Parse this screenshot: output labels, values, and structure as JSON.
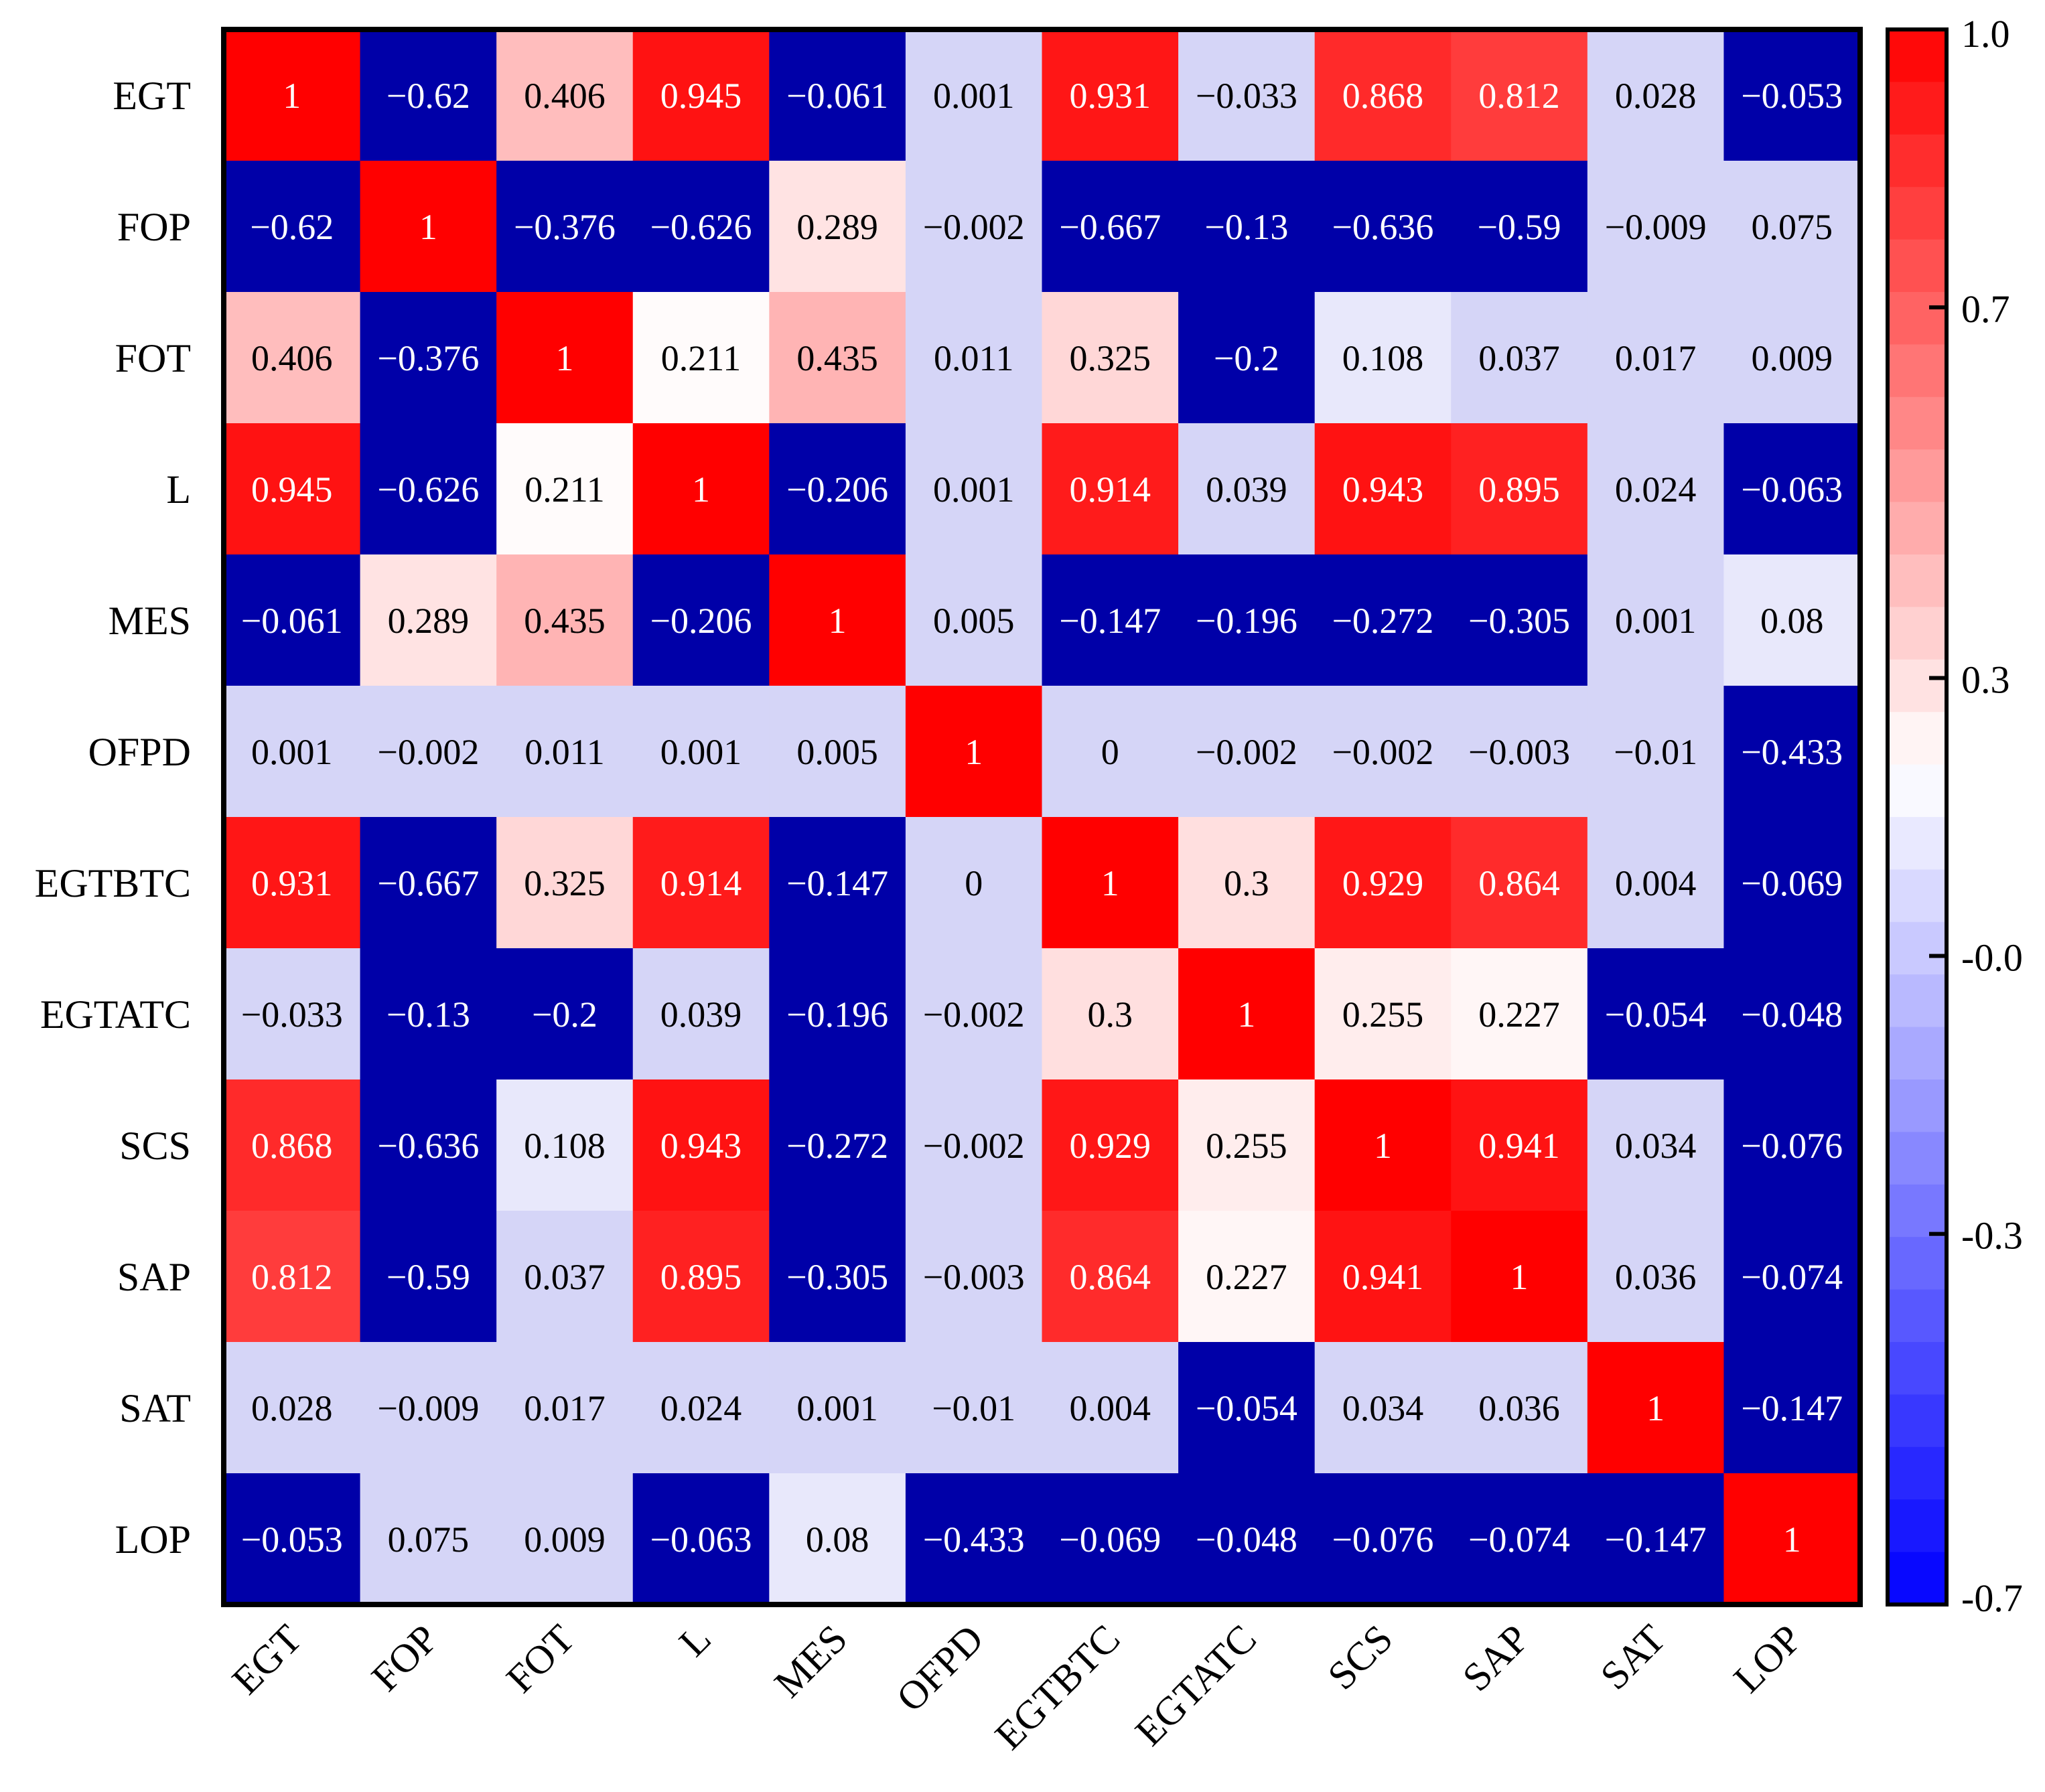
{
  "chart_data": {
    "type": "heatmap",
    "title": "",
    "xlabel": "",
    "ylabel": "",
    "labels": [
      "EGT",
      "FOP",
      "FOT",
      "L",
      "MES",
      "OFPD",
      "EGTBTC",
      "EGTATC",
      "SCS",
      "SAP",
      "SAT",
      "LOP"
    ],
    "matrix": [
      [
        "1",
        "−0.62",
        "0.406",
        "0.945",
        "−0.061",
        "0.001",
        "0.931",
        "−0.033",
        "0.868",
        "0.812",
        "0.028",
        "−0.053"
      ],
      [
        "−0.62",
        "1",
        "−0.376",
        "−0.626",
        "0.289",
        "−0.002",
        "−0.667",
        "−0.13",
        "−0.636",
        "−0.59",
        "−0.009",
        "0.075"
      ],
      [
        "0.406",
        "−0.376",
        "1",
        "0.211",
        "0.435",
        "0.011",
        "0.325",
        "−0.2",
        "0.108",
        "0.037",
        "0.017",
        "0.009"
      ],
      [
        "0.945",
        "−0.626",
        "0.211",
        "1",
        "−0.206",
        "0.001",
        "0.914",
        "0.039",
        "0.943",
        "0.895",
        "0.024",
        "−0.063"
      ],
      [
        "−0.061",
        "0.289",
        "0.435",
        "−0.206",
        "1",
        "0.005",
        "−0.147",
        "−0.196",
        "−0.272",
        "−0.305",
        "0.001",
        "0.08"
      ],
      [
        "0.001",
        "−0.002",
        "0.011",
        "0.001",
        "0.005",
        "1",
        "0",
        "−0.002",
        "−0.002",
        "−0.003",
        "−0.01",
        "−0.433"
      ],
      [
        "0.931",
        "−0.667",
        "0.325",
        "0.914",
        "−0.147",
        "0",
        "1",
        "0.3",
        "0.929",
        "0.864",
        "0.004",
        "−0.069"
      ],
      [
        "−0.033",
        "−0.13",
        "−0.2",
        "0.039",
        "−0.196",
        "−0.002",
        "0.3",
        "1",
        "0.255",
        "0.227",
        "−0.054",
        "−0.048"
      ],
      [
        "0.868",
        "−0.636",
        "0.108",
        "0.943",
        "−0.272",
        "−0.002",
        "0.929",
        "0.255",
        "1",
        "0.941",
        "0.034",
        "−0.076"
      ],
      [
        "0.812",
        "−0.59",
        "0.037",
        "0.895",
        "−0.305",
        "−0.003",
        "0.864",
        "0.227",
        "0.941",
        "1",
        "0.036",
        "−0.074"
      ],
      [
        "0.028",
        "−0.009",
        "0.017",
        "0.024",
        "0.001",
        "−0.01",
        "0.004",
        "−0.054",
        "0.034",
        "0.036",
        "1",
        "−0.147"
      ],
      [
        "−0.053",
        "0.075",
        "0.009",
        "−0.063",
        "0.08",
        "−0.433",
        "−0.069",
        "−0.048",
        "−0.076",
        "−0.074",
        "−0.147",
        "1"
      ]
    ],
    "colorbar": {
      "min": -0.7,
      "max": 1.0,
      "tick_labels": [
        "1.0",
        "0.7",
        "0.3",
        "-0.0",
        "-0.3",
        "-0.7"
      ],
      "tick_values": [
        1.0,
        0.7,
        0.3,
        0.0,
        -0.3,
        -0.7
      ],
      "bins": 30,
      "below_range_color": "#0000a8",
      "low_color": "#0000ff",
      "mid_color": "#ffffff",
      "high_color": "#ff0000"
    }
  }
}
